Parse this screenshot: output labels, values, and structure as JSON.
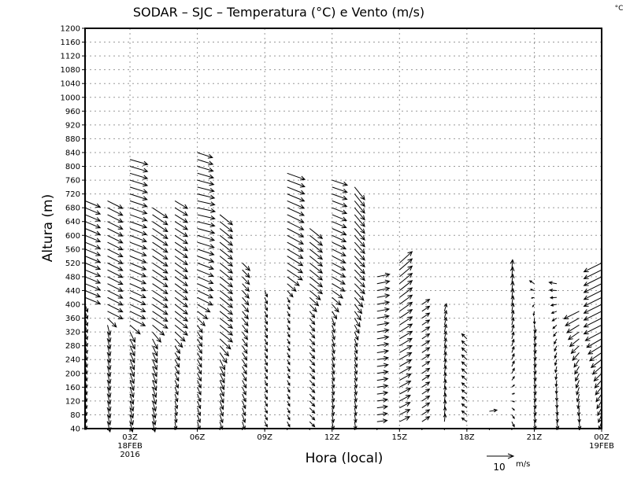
{
  "chart_data": {
    "type": "vector",
    "title": "SODAR – SJC – Temperatura (°C) e Vento (m/s)",
    "corner_unit": "°C",
    "xlabel": "Hora (local)",
    "ylabel": "Altura (m)",
    "ylim": [
      40,
      1200
    ],
    "xlim_hours": [
      1,
      24
    ],
    "yticks": [
      40,
      80,
      120,
      160,
      200,
      240,
      280,
      320,
      360,
      400,
      440,
      480,
      520,
      560,
      600,
      640,
      680,
      720,
      760,
      800,
      840,
      880,
      920,
      960,
      1000,
      1040,
      1080,
      1120,
      1160,
      1200
    ],
    "xticks": [
      {
        "hour": 3,
        "label": "03Z",
        "sub": [
          "18FEB",
          "2016"
        ]
      },
      {
        "hour": 6,
        "label": "06Z",
        "sub": []
      },
      {
        "hour": 9,
        "label": "09Z",
        "sub": []
      },
      {
        "hour": 12,
        "label": "12Z",
        "sub": []
      },
      {
        "hour": 15,
        "label": "15Z",
        "sub": []
      },
      {
        "hour": 18,
        "label": "18Z",
        "sub": []
      },
      {
        "hour": 21,
        "label": "21Z",
        "sub": []
      },
      {
        "hour": 24,
        "label": "00Z",
        "sub": [
          "19FEB"
        ]
      }
    ],
    "reference_vector": {
      "speed": 10,
      "label": "10",
      "unit": "m/s"
    },
    "level_step_m": 20,
    "columns": [
      {
        "hour": 1,
        "bottom": 60,
        "top": 700,
        "profile": [
          [
            60,
            0.5,
            -3
          ],
          [
            400,
            1,
            -3
          ],
          [
            420,
            6,
            -2.5
          ],
          [
            700,
            6,
            -2.5
          ]
        ]
      },
      {
        "hour": 2,
        "bottom": 60,
        "top": 700,
        "profile": [
          [
            60,
            1,
            -4
          ],
          [
            340,
            1,
            -4
          ],
          [
            380,
            6,
            -3
          ],
          [
            700,
            6,
            -3
          ]
        ]
      },
      {
        "hour": 3,
        "bottom": 60,
        "top": 820,
        "profile": [
          [
            60,
            1,
            -4
          ],
          [
            320,
            2,
            -4
          ],
          [
            360,
            6,
            -3
          ],
          [
            820,
            7,
            -2
          ]
        ]
      },
      {
        "hour": 4,
        "bottom": 60,
        "top": 680,
        "profile": [
          [
            60,
            1,
            -4
          ],
          [
            300,
            2,
            -4
          ],
          [
            360,
            6,
            -4
          ],
          [
            680,
            6,
            -4
          ]
        ]
      },
      {
        "hour": 5,
        "bottom": 60,
        "top": 700,
        "profile": [
          [
            60,
            0.5,
            -3
          ],
          [
            280,
            2,
            -3
          ],
          [
            340,
            5,
            -4
          ],
          [
            700,
            5,
            -3
          ]
        ]
      },
      {
        "hour": 6,
        "bottom": 60,
        "top": 840,
        "profile": [
          [
            60,
            1,
            -3
          ],
          [
            340,
            2,
            -3
          ],
          [
            420,
            6,
            -3
          ],
          [
            680,
            7,
            -1.5
          ],
          [
            840,
            6,
            -2
          ]
        ]
      },
      {
        "hour": 7,
        "bottom": 60,
        "top": 660,
        "profile": [
          [
            60,
            1,
            -3
          ],
          [
            240,
            2,
            -4
          ],
          [
            320,
            5,
            -4
          ],
          [
            660,
            5,
            -4
          ]
        ]
      },
      {
        "hour": 8,
        "bottom": 60,
        "top": 520,
        "profile": [
          [
            60,
            1,
            -3
          ],
          [
            300,
            2,
            -3
          ],
          [
            520,
            3,
            -3
          ]
        ]
      },
      {
        "hour": 9,
        "bottom": 60,
        "top": 440,
        "profile": [
          [
            60,
            1,
            -2
          ],
          [
            440,
            1,
            -2.5
          ]
        ]
      },
      {
        "hour": 10,
        "bottom": 60,
        "top": 780,
        "profile": [
          [
            60,
            1,
            -2
          ],
          [
            420,
            1,
            -2
          ],
          [
            500,
            6,
            -4
          ],
          [
            780,
            7,
            -2.5
          ]
        ]
      },
      {
        "hour": 11,
        "bottom": 60,
        "top": 620,
        "profile": [
          [
            60,
            2,
            -2
          ],
          [
            380,
            2,
            -2.5
          ],
          [
            460,
            5,
            -4
          ],
          [
            620,
            5,
            -4
          ]
        ]
      },
      {
        "hour": 12,
        "bottom": 60,
        "top": 760,
        "profile": [
          [
            60,
            0.5,
            -3
          ],
          [
            360,
            1,
            -3
          ],
          [
            460,
            5,
            -3
          ],
          [
            760,
            6,
            -2
          ]
        ]
      },
      {
        "hour": 13,
        "bottom": 60,
        "top": 740,
        "profile": [
          [
            60,
            0.5,
            -3
          ],
          [
            300,
            1,
            -3
          ],
          [
            460,
            4,
            -4
          ],
          [
            740,
            4,
            -5
          ]
        ]
      },
      {
        "hour": 14,
        "bottom": 60,
        "top": 490,
        "profile": [
          [
            60,
            4,
            0.5
          ],
          [
            490,
            5,
            1
          ]
        ]
      },
      {
        "hour": 15,
        "bottom": 60,
        "top": 520,
        "profile": [
          [
            60,
            4,
            2
          ],
          [
            300,
            5,
            3
          ],
          [
            520,
            5,
            4.5
          ]
        ]
      },
      {
        "hour": 16,
        "bottom": 60,
        "top": 400,
        "profile": [
          [
            60,
            3,
            2
          ],
          [
            400,
            3,
            2
          ]
        ]
      },
      {
        "hour": 17,
        "bottom": 60,
        "top": 390,
        "profile": [
          [
            60,
            0.3,
            3
          ],
          [
            390,
            0.8,
            3
          ]
        ]
      },
      {
        "hour": 18,
        "bottom": 60,
        "top": 300,
        "profile": [
          [
            60,
            -2,
            1.5
          ],
          [
            300,
            -2,
            2
          ]
        ]
      },
      {
        "hour": 19,
        "bottom": 90,
        "top": 100,
        "profile": [
          [
            90,
            3,
            0.5
          ],
          [
            100,
            3,
            0
          ]
        ]
      },
      {
        "hour": 20,
        "bottom": 60,
        "top": 500,
        "profile": [
          [
            60,
            1,
            -2
          ],
          [
            200,
            1,
            2
          ],
          [
            500,
            0.3,
            4
          ]
        ]
      },
      {
        "hour": 21,
        "bottom": 60,
        "top": 470,
        "profile": [
          [
            60,
            0.5,
            -3
          ],
          [
            340,
            0.5,
            -3
          ],
          [
            470,
            -2,
            1.5
          ]
        ]
      },
      {
        "hour": 22,
        "bottom": 60,
        "top": 460,
        "profile": [
          [
            60,
            0.5,
            -3
          ],
          [
            300,
            -1,
            -2
          ],
          [
            460,
            -3,
            0.5
          ]
        ]
      },
      {
        "hour": 23,
        "bottom": 60,
        "top": 380,
        "profile": [
          [
            60,
            0.3,
            -3
          ],
          [
            240,
            -2,
            -3
          ],
          [
            380,
            -6,
            -3
          ]
        ]
      },
      {
        "hour": 24,
        "bottom": 60,
        "top": 530,
        "profile": [
          [
            60,
            -1,
            -3
          ],
          [
            200,
            -3,
            -3
          ],
          [
            340,
            -7,
            -3.5
          ],
          [
            530,
            -7,
            -3.5
          ]
        ]
      }
    ]
  }
}
